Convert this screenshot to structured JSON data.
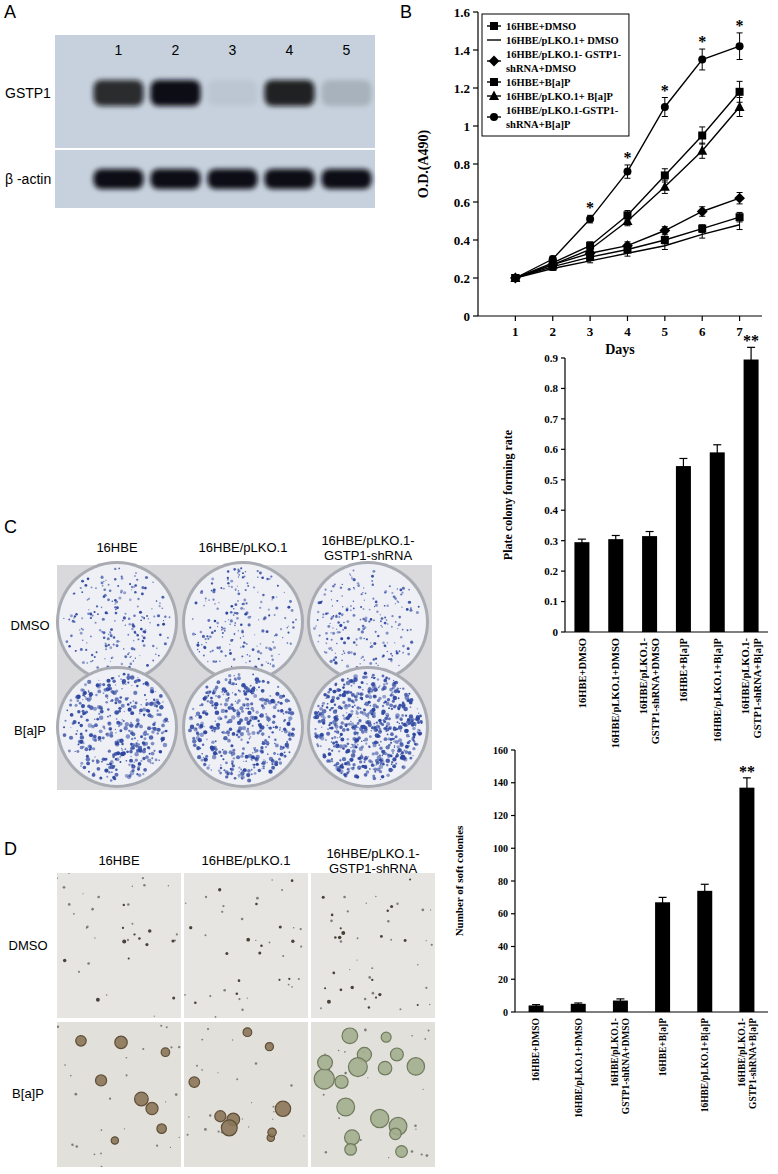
{
  "panel_labels": [
    "A",
    "B",
    "C",
    "D"
  ],
  "western_blot": {
    "lanes": [
      1,
      2,
      3,
      4,
      5
    ],
    "rows": [
      {
        "label": "GSTP1",
        "intensities": [
          0.85,
          1,
          0.05,
          0.9,
          0.15
        ]
      },
      {
        "label": "β -actin",
        "intensities": [
          1,
          1,
          1,
          1,
          1
        ]
      }
    ]
  },
  "colony_plates": {
    "columns": [
      "16HBE",
      "16HBE/pLKO.1",
      "16HBE/pLKO.1-GSTP1-shRNA"
    ],
    "rows": [
      "DMSO",
      "B[a]P"
    ]
  },
  "soft_agar_images": {
    "columns": [
      "16HBE",
      "16HBE/pLKO.1",
      "16HBE/pLKO.1-GSTP1-shRNA"
    ],
    "rows": [
      "DMSO",
      "B[a]P"
    ]
  },
  "chart_data": [
    {
      "type": "line",
      "x_label": "Days",
      "y_label": "O.D.(A490)",
      "x": [
        1,
        2,
        3,
        4,
        5,
        6,
        7
      ],
      "xlim": [
        0,
        7.6
      ],
      "xticks": [
        1,
        2,
        3,
        4,
        5,
        6,
        7
      ],
      "ylim": [
        0,
        1.6
      ],
      "yticks": [
        0,
        0.2,
        0.4,
        0.6,
        0.8,
        1,
        1.2,
        1.4,
        1.6
      ],
      "grid": false,
      "legend": "upper left",
      "series": [
        {
          "name": "16HBE+DMSO",
          "color": "#000000",
          "marker": "square",
          "line_style": "solid",
          "values": [
            0.2,
            0.26,
            0.31,
            0.35,
            0.4,
            0.46,
            0.52
          ],
          "errors": [
            0.005,
            0.01,
            0.015,
            0.015,
            0.02,
            0.02,
            0.025
          ]
        },
        {
          "name": "16HBE/pLKO.1+ DMSO",
          "color": "#000000",
          "marker": "none",
          "line_style": "solid",
          "values": [
            0.2,
            0.25,
            0.29,
            0.33,
            0.37,
            0.43,
            0.48
          ],
          "errors": [
            0.005,
            0.01,
            0.01,
            0.015,
            0.02,
            0.02,
            0.025
          ]
        },
        {
          "name": "16HBE/pLKO.1- GSTP1-shRNA+DMSO",
          "color": "#000000",
          "marker": "diamond",
          "line_style": "solid",
          "values": [
            0.2,
            0.27,
            0.33,
            0.37,
            0.45,
            0.55,
            0.62
          ],
          "errors": [
            0.005,
            0.01,
            0.015,
            0.02,
            0.02,
            0.025,
            0.03
          ]
        },
        {
          "name": "16HBE+B[a]P",
          "color": "#000000",
          "marker": "square",
          "line_style": "solid",
          "values": [
            0.2,
            0.28,
            0.37,
            0.53,
            0.74,
            0.95,
            1.18
          ],
          "errors": [
            0.005,
            0.015,
            0.02,
            0.025,
            0.035,
            0.045,
            0.055
          ]
        },
        {
          "name": "16HBE/pLKO.1+ B[a]P",
          "color": "#000000",
          "marker": "triangle",
          "line_style": "solid",
          "values": [
            0.2,
            0.27,
            0.35,
            0.5,
            0.68,
            0.87,
            1.1
          ],
          "errors": [
            0.005,
            0.015,
            0.02,
            0.025,
            0.035,
            0.04,
            0.05
          ]
        },
        {
          "name": "16HBE/pLKO.1-GSTP1-shRNA+B[a]P",
          "color": "#000000",
          "marker": "circle",
          "line_style": "solid",
          "values": [
            0.2,
            0.3,
            0.51,
            0.76,
            1.1,
            1.35,
            1.42
          ],
          "errors": [
            0.005,
            0.015,
            0.02,
            0.035,
            0.05,
            0.055,
            0.07
          ]
        }
      ],
      "annotations": [
        {
          "x": 3,
          "text": "*"
        },
        {
          "x": 4,
          "text": "*"
        },
        {
          "x": 5,
          "text": "*"
        },
        {
          "x": 6,
          "text": "*"
        },
        {
          "x": 7,
          "text": "*"
        }
      ]
    },
    {
      "type": "bar",
      "y_label": "Plate colony forming rate",
      "categories": [
        "16HBE+DMSO",
        "16HBE/pLKO.1+DMSO",
        "16HBE/pLKO.1-GSTP1-shRNA+DMSO",
        "16HBE+B[a]P",
        "16HBE/pLKO.1+B[a]P",
        "16HBE/pLKO.1-GSTP1-shRNA+B[a]P"
      ],
      "values": [
        0.295,
        0.305,
        0.315,
        0.545,
        0.59,
        0.895
      ],
      "errors": [
        0.01,
        0.012,
        0.015,
        0.025,
        0.025,
        0.04
      ],
      "color": "#000000",
      "grid": false,
      "ylim": [
        0,
        0.9
      ],
      "yticks": [
        0,
        0.1,
        0.2,
        0.3,
        0.4,
        0.5,
        0.6,
        0.7,
        0.8,
        0.9
      ],
      "annotations": [
        {
          "category": "16HBE/pLKO.1-GSTP1-shRNA+B[a]P",
          "text": "**"
        }
      ]
    },
    {
      "type": "bar",
      "y_label": "Number of soft colonies",
      "categories": [
        "16HBE+DMSO",
        "16HBE/pLKO.1+DMSO",
        "16HBE/pLKO.1-GSTP1-shRNA+DMSO",
        "16HBE+B[a]P",
        "16HBE/pLKO.1+B[a]P",
        "16HBE/pLKO.1-GSTP1-shRNA+B[a]P"
      ],
      "values": [
        4,
        5,
        7,
        67,
        74,
        137
      ],
      "errors": [
        0.5,
        0.5,
        1,
        3,
        4,
        6
      ],
      "color": "#000000",
      "grid": false,
      "ylim": [
        0,
        160
      ],
      "yticks": [
        0,
        20,
        40,
        60,
        80,
        100,
        120,
        140,
        160
      ],
      "annotations": [
        {
          "category": "16HBE/pLKO.1-GSTP1-shRNA+B[a]P",
          "text": "**"
        }
      ]
    }
  ]
}
